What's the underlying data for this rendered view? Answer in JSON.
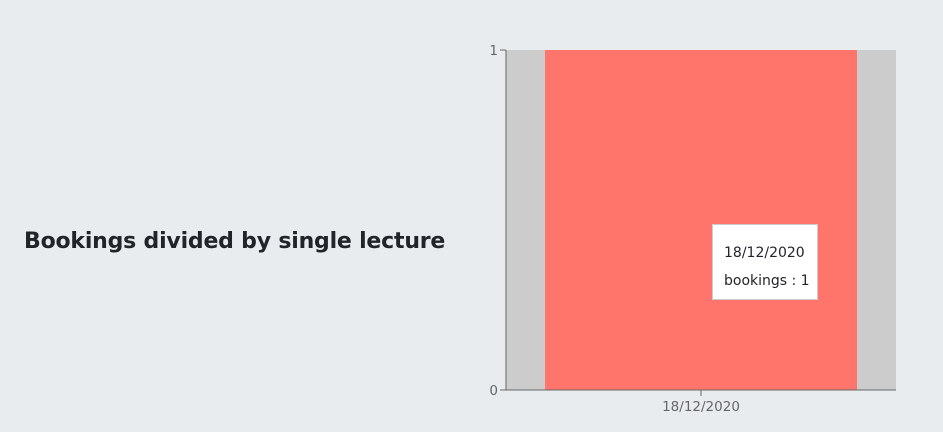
{
  "section": {
    "title": "Bookings divided by single lecture"
  },
  "chart_data": {
    "type": "bar",
    "categories": [
      "18/12/2020"
    ],
    "series": [
      {
        "name": "bookings",
        "values": [
          1
        ]
      }
    ],
    "ylim": [
      0,
      1
    ],
    "yticks": [
      0,
      1
    ],
    "grid": false,
    "legend": "none",
    "colors": {
      "bar": "#ff756b",
      "hover_band": "#cccccc",
      "axis": "#666666",
      "tick_text": "#666666"
    },
    "tooltip": {
      "label": "18/12/2020",
      "series_text": "bookings : 1"
    }
  }
}
